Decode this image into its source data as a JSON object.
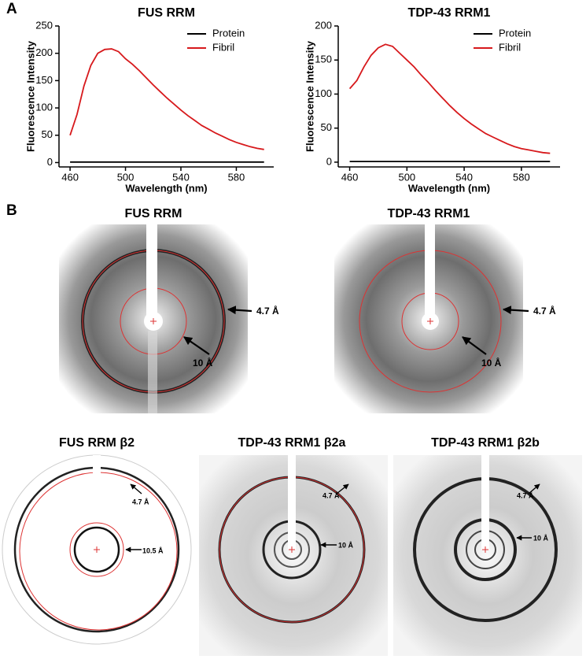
{
  "panel_labels": [
    "A",
    "B"
  ],
  "chart_data": [
    {
      "type": "line",
      "title": "FUS RRM",
      "x_label": "Wavelength (nm)",
      "y_label": "Fluorescence Intensity",
      "x": [
        460,
        465,
        470,
        475,
        480,
        485,
        490,
        495,
        500,
        505,
        510,
        515,
        520,
        525,
        530,
        535,
        540,
        545,
        550,
        555,
        560,
        565,
        570,
        575,
        580,
        585,
        590,
        595,
        600
      ],
      "xlim": [
        452,
        607
      ],
      "xticks": [
        460,
        500,
        540,
        580
      ],
      "ylim": [
        -8,
        250
      ],
      "yticks": [
        0,
        50,
        100,
        150,
        200,
        250
      ],
      "legend": "upper right",
      "series": [
        {
          "name": "Protein",
          "color": "#000000",
          "values": [
            1,
            1,
            1,
            1,
            1,
            1,
            1,
            1,
            1,
            1,
            1,
            1,
            1,
            1,
            1,
            1,
            1,
            1,
            1,
            1,
            1,
            1,
            1,
            1,
            1,
            1,
            1,
            1,
            1
          ]
        },
        {
          "name": "Fibril",
          "color": "#d7191c",
          "values": [
            50,
            88,
            140,
            178,
            200,
            207,
            208,
            203,
            190,
            180,
            168,
            155,
            142,
            130,
            118,
            107,
            96,
            86,
            77,
            68,
            61,
            54,
            48,
            42,
            37,
            33,
            29,
            26,
            24
          ]
        }
      ]
    },
    {
      "type": "line",
      "title": "TDP-43 RRM1",
      "x_label": "Wavelength (nm)",
      "y_label": "Fluorescence Intensity",
      "x": [
        460,
        465,
        470,
        475,
        480,
        485,
        490,
        495,
        500,
        505,
        510,
        515,
        520,
        525,
        530,
        535,
        540,
        545,
        550,
        555,
        560,
        565,
        570,
        575,
        580,
        585,
        590,
        595,
        600
      ],
      "xlim": [
        452,
        607
      ],
      "xticks": [
        460,
        500,
        540,
        580
      ],
      "ylim": [
        -7,
        200
      ],
      "yticks": [
        0,
        50,
        100,
        150,
        200
      ],
      "legend": "upper right",
      "series": [
        {
          "name": "Protein",
          "color": "#000000",
          "values": [
            1,
            1,
            1,
            1,
            1,
            1,
            1,
            1,
            1,
            1,
            1,
            1,
            1,
            1,
            1,
            1,
            1,
            1,
            1,
            1,
            1,
            1,
            1,
            1,
            1,
            1,
            1,
            1,
            1
          ]
        },
        {
          "name": "Fibril",
          "color": "#d7191c",
          "values": [
            108,
            120,
            140,
            157,
            168,
            173,
            170,
            160,
            150,
            140,
            128,
            117,
            105,
            94,
            83,
            73,
            64,
            56,
            49,
            42,
            37,
            32,
            27,
            23,
            20,
            18,
            16,
            14,
            13
          ]
        }
      ]
    }
  ],
  "diffraction": [
    {
      "title": "FUS RRM",
      "labels": [
        "4.7 Å",
        "10 Å"
      ]
    },
    {
      "title": "TDP-43 RRM1",
      "labels": [
        "4.7 Å",
        "10 Å"
      ]
    },
    {
      "title": "FUS RRM β2",
      "labels": [
        "4.7 Å",
        "10.5 Å"
      ]
    },
    {
      "title": "TDP-43 RRM1 β2a",
      "labels": [
        "4.7 Å",
        "10 Å"
      ]
    },
    {
      "title": "TDP-43 RRM1 β2b",
      "labels": [
        "4.7 Å",
        "10 Å"
      ]
    }
  ]
}
